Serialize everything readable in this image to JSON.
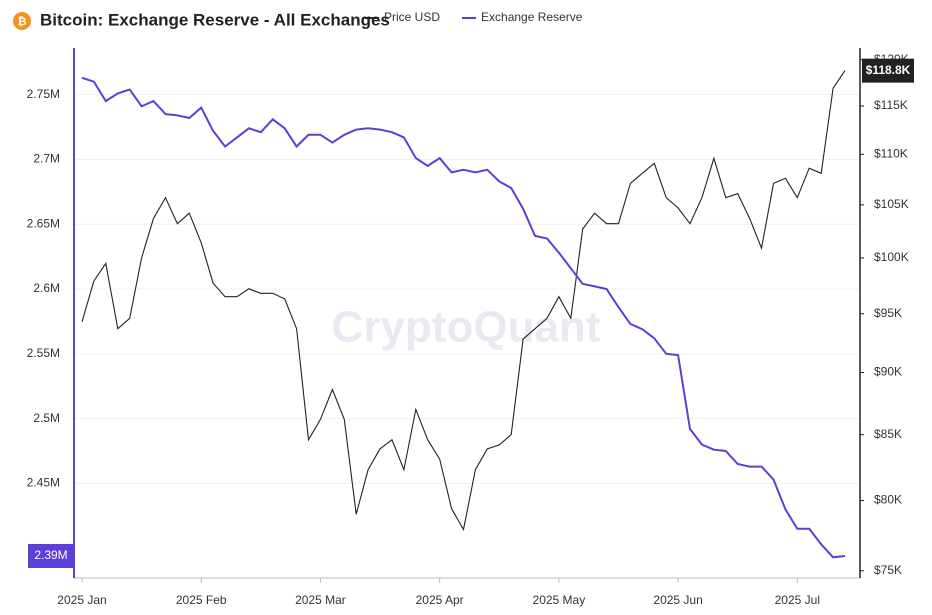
{
  "chart_data": {
    "type": "line",
    "title": "Bitcoin: Exchange Reserve - All Exchanges",
    "watermark": "CryptoQuant",
    "categories": [
      "2025 Jan",
      null,
      null,
      null,
      null,
      null,
      null,
      null,
      null,
      null,
      "2025 Feb",
      null,
      null,
      null,
      null,
      null,
      null,
      null,
      null,
      null,
      "2025 Mar",
      null,
      null,
      null,
      null,
      null,
      null,
      null,
      null,
      null,
      "2025 Apr",
      null,
      null,
      null,
      null,
      null,
      null,
      null,
      null,
      null,
      "2025 May",
      null,
      null,
      null,
      null,
      null,
      null,
      null,
      null,
      null,
      "2025 Jun",
      null,
      null,
      null,
      null,
      null,
      null,
      null,
      null,
      null,
      "2025 Jul",
      null,
      null,
      null,
      null
    ],
    "series": [
      {
        "name": "Price USD",
        "color": "#222222",
        "axis": "y2",
        "last_label": "$118.8K",
        "values": [
          94300,
          97900,
          99500,
          93700,
          94600,
          100000,
          103700,
          105700,
          103200,
          104200,
          101400,
          97700,
          96500,
          96500,
          97200,
          96800,
          96800,
          96300,
          93700,
          84600,
          86200,
          88600,
          86200,
          79000,
          82300,
          83900,
          84600,
          82300,
          87000,
          84600,
          83100,
          79400,
          77900,
          82300,
          83900,
          84200,
          85000,
          92800,
          93700,
          94600,
          96500,
          94600,
          102700,
          104200,
          103200,
          103200,
          107100,
          108100,
          109100,
          105700,
          104700,
          103200,
          105700,
          109600,
          105700,
          106100,
          103700,
          100900,
          107100,
          107600,
          105700,
          108600,
          108100,
          116900,
          118800
        ]
      },
      {
        "name": "Exchange Reserve",
        "color": "#5b3fd6",
        "last_label": "2.39M",
        "values": [
          2763000,
          2760000,
          2745000,
          2751000,
          2754000,
          2741000,
          2745000,
          2735000,
          2734000,
          2732000,
          2740000,
          2722000,
          2710000,
          2717000,
          2724000,
          2721000,
          2731000,
          2724000,
          2710000,
          2719000,
          2719000,
          2713000,
          2719000,
          2723000,
          2724000,
          2723000,
          2721000,
          2717000,
          2701000,
          2695000,
          2701000,
          2690000,
          2692000,
          2690000,
          2692000,
          2683000,
          2678000,
          2662000,
          2641000,
          2639000,
          2628000,
          2616000,
          2604000,
          2602000,
          2600000,
          2586000,
          2573000,
          2569000,
          2562000,
          2550000,
          2549000,
          2492000,
          2480000,
          2476000,
          2475000,
          2465000,
          2463000,
          2463000,
          2453000,
          2430000,
          2415000,
          2415000,
          2403000,
          2393000,
          2394000
        ]
      }
    ],
    "ylim": [
      2377000,
      2786000
    ],
    "yticks": [
      {
        "value": 2450000,
        "label": "2.45M"
      },
      {
        "value": 2500000,
        "label": "2.5M"
      },
      {
        "value": 2550000,
        "label": "2.55M"
      },
      {
        "value": 2600000,
        "label": "2.6M"
      },
      {
        "value": 2650000,
        "label": "2.65M"
      },
      {
        "value": 2700000,
        "label": "2.7M"
      },
      {
        "value": 2750000,
        "label": "2.75M"
      }
    ],
    "y2lim": [
      74500,
      121300
    ],
    "y2ticks": [
      {
        "value": 75000,
        "label": "$75K"
      },
      {
        "value": 80000,
        "label": "$80K"
      },
      {
        "value": 85000,
        "label": "$85K"
      },
      {
        "value": 90000,
        "label": "$90K"
      },
      {
        "value": 95000,
        "label": "$95K"
      },
      {
        "value": 100000,
        "label": "$100K"
      },
      {
        "value": 105000,
        "label": "$105K"
      },
      {
        "value": 110000,
        "label": "$110K"
      },
      {
        "value": 115000,
        "label": "$115K"
      },
      {
        "value": 120000,
        "label": "$120K"
      }
    ],
    "y2log": true,
    "grid": true
  }
}
